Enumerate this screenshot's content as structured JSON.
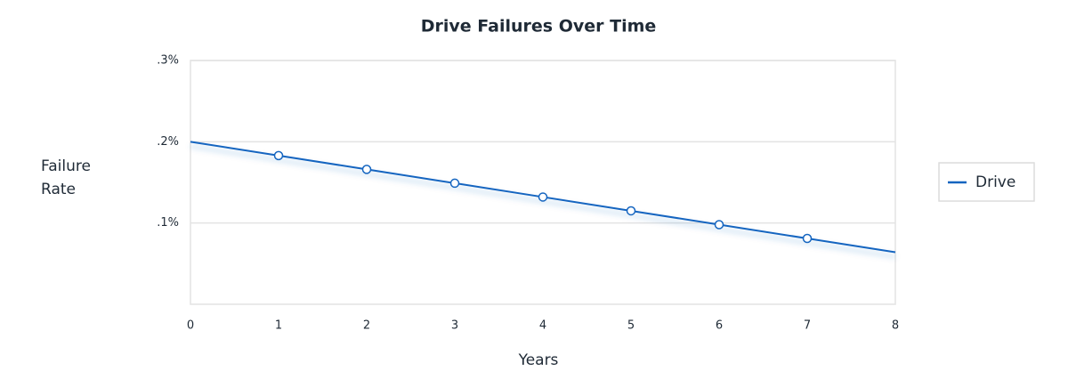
{
  "chart_data": {
    "type": "line",
    "title": "Drive Failures Over Time",
    "x_label": "Years",
    "y_label": "Failure Rate",
    "x": [
      0,
      1,
      2,
      3,
      4,
      5,
      6,
      7,
      8
    ],
    "series": [
      {
        "name": "Drive",
        "color": "#1565c0",
        "values": [
          0.2,
          0.183,
          0.166,
          0.149,
          0.132,
          0.115,
          0.098,
          0.081,
          0.064
        ]
      }
    ],
    "xlim": [
      0,
      8
    ],
    "xticks": [
      0,
      1,
      2,
      3,
      4,
      5,
      6,
      7,
      8
    ],
    "ylim": [
      0,
      0.3
    ],
    "yticks": [
      {
        "value": 0.1,
        "label": ".1%"
      },
      {
        "value": 0.2,
        "label": ".2%"
      },
      {
        "value": 0.3,
        "label": ".3%"
      }
    ],
    "grid": true,
    "legend": "right"
  }
}
